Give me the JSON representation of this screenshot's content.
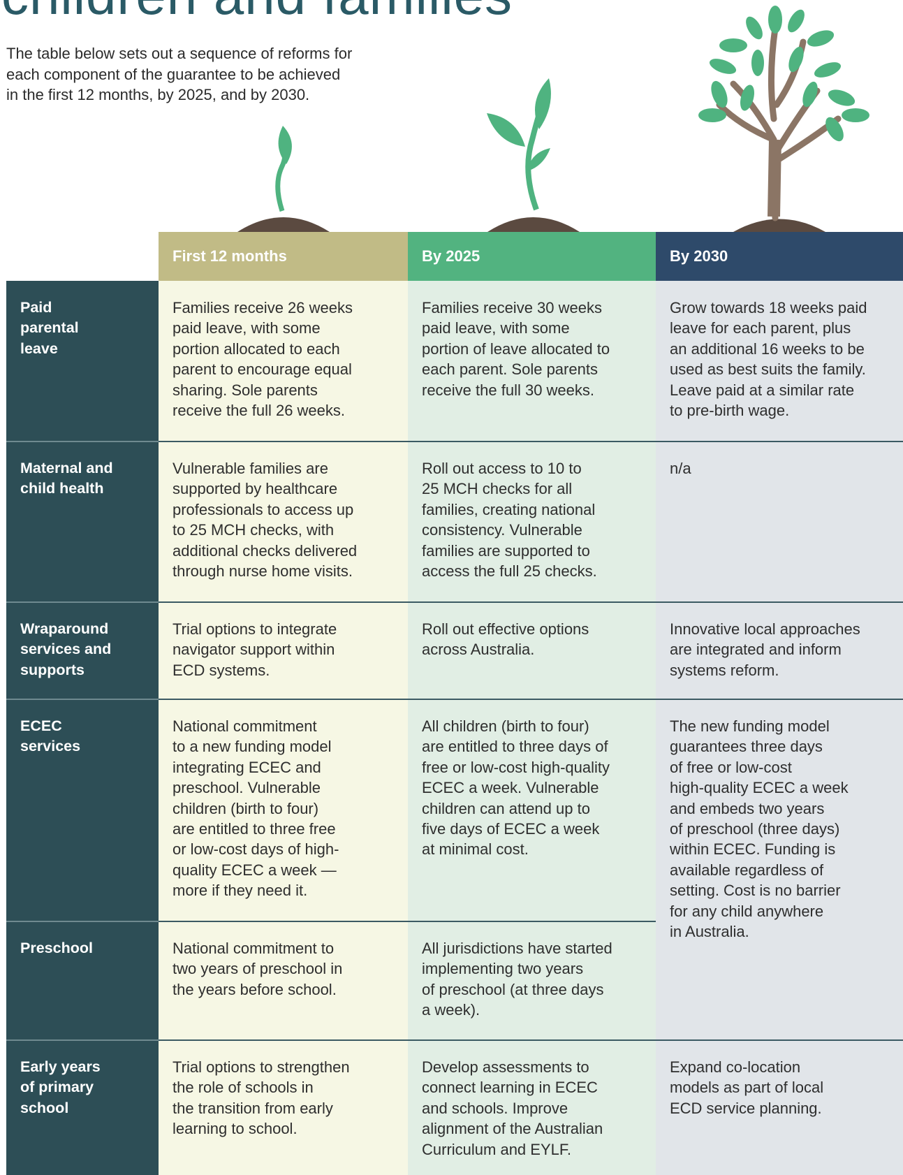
{
  "header": {
    "title": "children and families",
    "intro": [
      "The table below sets out a sequence of reforms for",
      "each component of the guarantee to be achieved",
      "in the first 12 months, by 2025, and by 2030."
    ]
  },
  "table": {
    "columns": [
      "First 12 months",
      "By 2025",
      "By 2030"
    ],
    "rows": [
      {
        "label": [
          "Paid",
          "parental",
          "leave"
        ],
        "cells": [
          [
            "Families receive 26 weeks",
            "paid leave, with some",
            "portion allocated to each",
            "parent to encourage equal",
            "sharing. Sole parents",
            "receive the full 26 weeks."
          ],
          [
            "Families receive 30 weeks",
            "paid leave, with some",
            "portion of leave allocated to",
            "each parent. Sole parents",
            "receive the full 30 weeks."
          ],
          [
            "Grow towards 18 weeks paid",
            "leave for each parent, plus",
            "an additional 16 weeks to be",
            "used as best suits the family.",
            "Leave paid at a similar rate",
            "to pre-birth wage."
          ]
        ]
      },
      {
        "label": [
          "Maternal and",
          "child health"
        ],
        "cells": [
          [
            "Vulnerable families are",
            "supported by healthcare",
            "professionals to access up",
            "to 25 MCH checks, with",
            "additional checks delivered",
            "through nurse home visits."
          ],
          [
            "Roll out access to 10 to",
            "25 MCH checks for all",
            "families, creating national",
            "consistency. Vulnerable",
            "families are supported to",
            "access the full 25 checks."
          ],
          [
            "n/a"
          ]
        ]
      },
      {
        "label": [
          "Wraparound",
          "services and",
          "supports"
        ],
        "cells": [
          [
            "Trial options to integrate",
            "navigator support within",
            "ECD systems."
          ],
          [
            "Roll out effective options",
            "across Australia."
          ],
          [
            "Innovative local approaches",
            "are integrated and inform",
            "systems reform."
          ]
        ]
      },
      {
        "label": [
          "ECEC",
          "services"
        ],
        "cells": [
          [
            "National commitment",
            "to a new funding model",
            "integrating ECEC and",
            "preschool. Vulnerable",
            "children (birth to four)",
            "are entitled to three free",
            "or low-cost days of high-",
            "quality ECEC a week —",
            "more if they need it."
          ],
          [
            "All children (birth to four)",
            "are entitled to three days of",
            "free or low-cost high-quality",
            "ECEC a week. Vulnerable",
            "children can attend up to",
            "five days of ECEC a week",
            "at minimal cost."
          ],
          [
            "The new funding model",
            "guarantees three days",
            "of free or low-cost",
            "high-quality ECEC a week",
            "and embeds two years",
            "of preschool (three days)",
            "within ECEC. Funding is",
            "available regardless of",
            "setting. Cost is no barrier",
            "for any child anywhere",
            "in Australia."
          ]
        ]
      },
      {
        "label": [
          "Preschool"
        ],
        "cells": [
          [
            "National commitment to",
            "two years of preschool in",
            "the years before school."
          ],
          [
            "All jurisdictions have started",
            "implementing two years",
            "of preschool (at three days",
            "a week)."
          ]
        ]
      },
      {
        "label": [
          "Early years",
          "of primary",
          "school"
        ],
        "cells": [
          [
            "Trial options to strengthen",
            "the role of schools in",
            "the transition from early",
            "learning to school."
          ],
          [
            "Develop assessments to",
            "connect learning in ECEC",
            "and schools. Improve",
            "alignment of the Australian",
            "Curriculum and EYLF."
          ],
          [
            "Expand co-location",
            "models as part of local",
            "ECD service planning."
          ]
        ]
      }
    ]
  }
}
